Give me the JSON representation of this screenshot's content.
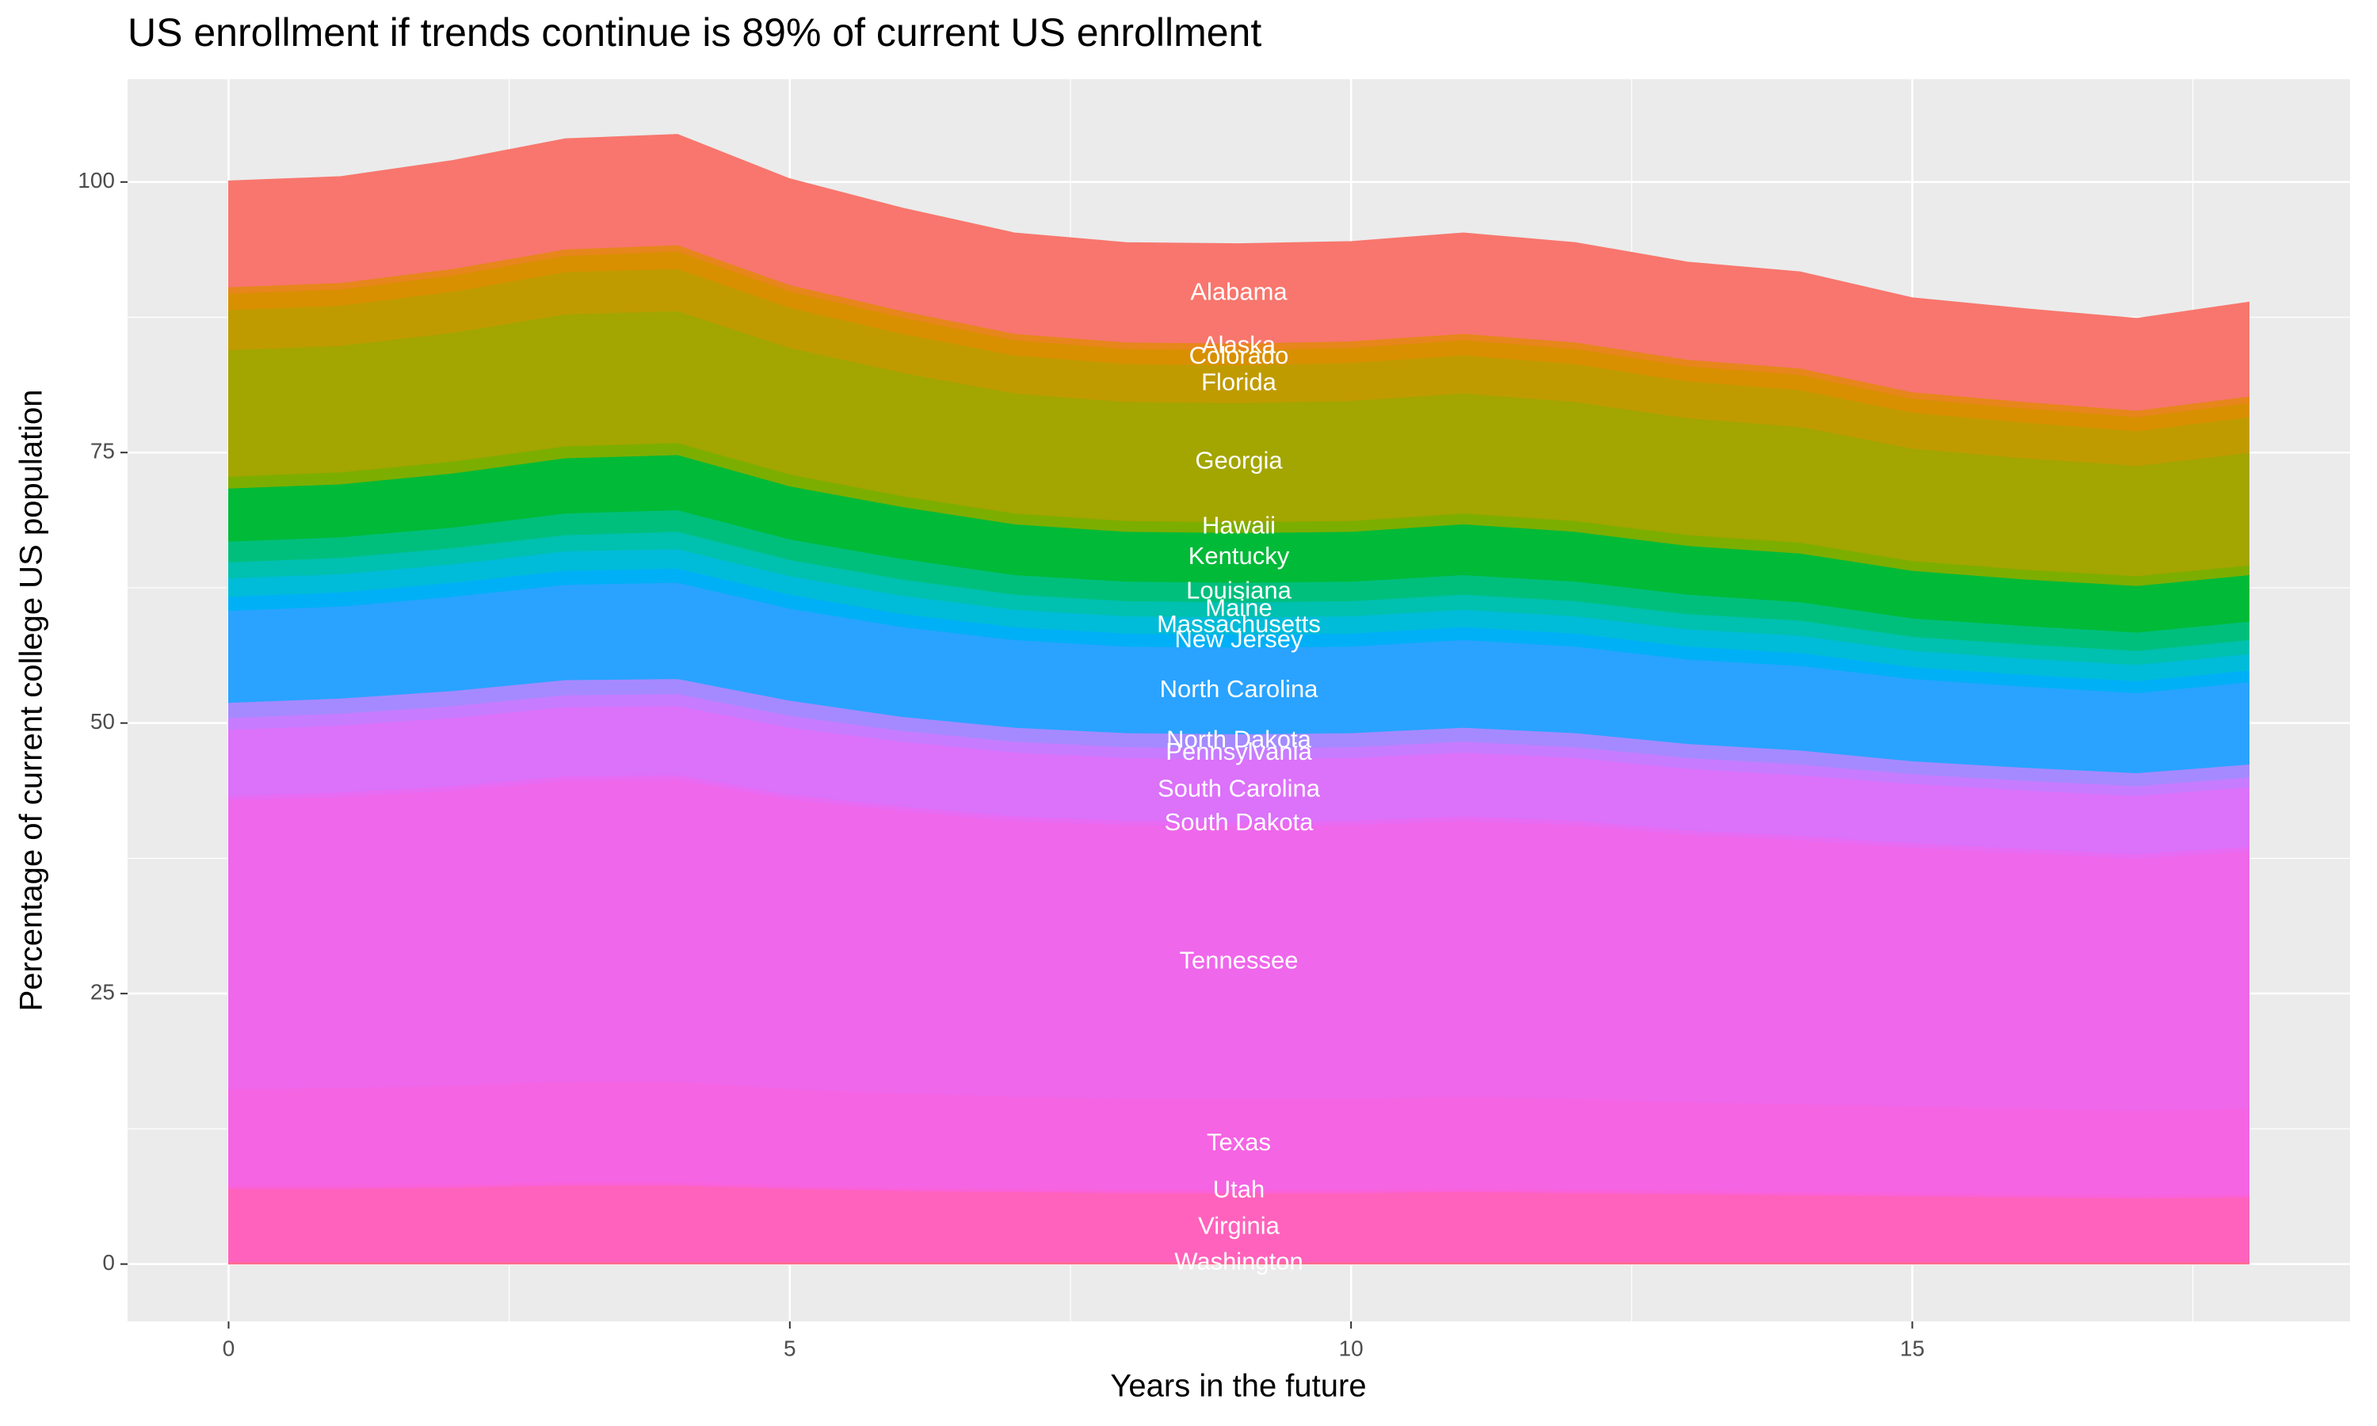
{
  "chart_data": {
    "type": "stacked-area",
    "title": "US enrollment if trends continue is 89% of current US enrollment",
    "x_label": "Years in the future",
    "y_label": "Percentage of current college US population",
    "x": [
      0,
      1,
      2,
      3,
      4,
      5,
      6,
      7,
      8,
      9,
      10,
      11,
      12,
      13,
      14,
      15,
      16,
      17,
      18
    ],
    "xlim": [
      -0.9,
      18.9
    ],
    "xticks": [
      0,
      5,
      10,
      15
    ],
    "ylim": [
      -5.3,
      109.5
    ],
    "yticks": [
      0,
      25,
      50,
      75,
      100
    ],
    "grid": true,
    "label_x": 9,
    "series": [
      {
        "name": "Washington",
        "color": "#FF6C91",
        "values": [
          0.2,
          0.2,
          0.2,
          0.2,
          0.2,
          0.2,
          0.2,
          0.2,
          0.2,
          0.2,
          0.2,
          0.2,
          0.2,
          0.2,
          0.2,
          0.2,
          0.2,
          0.2,
          0.2
        ]
      },
      {
        "name": "Virginia",
        "color": "#FF62BC",
        "values": [
          6.8,
          6.8,
          6.9,
          7.1,
          7.1,
          6.8,
          6.6,
          6.5,
          6.4,
          6.4,
          6.4,
          6.5,
          6.4,
          6.3,
          6.2,
          6.1,
          6.0,
          5.9,
          6.0
        ]
      },
      {
        "name": "Utah",
        "color": "#FA62DB",
        "values": [
          0.3,
          0.3,
          0.3,
          0.3,
          0.3,
          0.3,
          0.3,
          0.3,
          0.3,
          0.3,
          0.3,
          0.3,
          0.3,
          0.3,
          0.3,
          0.3,
          0.3,
          0.3,
          0.3
        ]
      },
      {
        "name": "Texas",
        "color": "#F564E3",
        "values": [
          8.9,
          9.0,
          9.1,
          9.3,
          9.3,
          8.9,
          8.7,
          8.5,
          8.4,
          8.4,
          8.4,
          8.5,
          8.4,
          8.2,
          8.1,
          8.0,
          7.9,
          7.8,
          7.9
        ]
      },
      {
        "name": "Tennessee",
        "color": "#EF67EB",
        "values": [
          26.7,
          26.9,
          27.3,
          27.8,
          27.9,
          26.8,
          26.1,
          25.5,
          25.3,
          25.2,
          25.3,
          25.5,
          25.3,
          24.7,
          24.4,
          23.9,
          23.6,
          23.3,
          23.8
        ]
      },
      {
        "name": "South Dakota",
        "color": "#E76BF3",
        "values": [
          0.4,
          0.4,
          0.4,
          0.4,
          0.4,
          0.4,
          0.4,
          0.4,
          0.4,
          0.4,
          0.4,
          0.4,
          0.4,
          0.4,
          0.4,
          0.4,
          0.4,
          0.4,
          0.4
        ]
      },
      {
        "name": "South Carolina",
        "color": "#DC71FA",
        "values": [
          6.1,
          6.2,
          6.3,
          6.4,
          6.4,
          6.2,
          6.0,
          5.9,
          5.8,
          5.8,
          5.8,
          5.9,
          5.8,
          5.7,
          5.6,
          5.5,
          5.4,
          5.4,
          5.5
        ]
      },
      {
        "name": "Pennsylvania",
        "color": "#C77CFF",
        "values": [
          1.1,
          1.1,
          1.1,
          1.1,
          1.1,
          1.1,
          1.0,
          1.0,
          1.0,
          1.0,
          1.0,
          1.0,
          1.0,
          1.0,
          1.0,
          0.9,
          0.9,
          0.9,
          0.9
        ]
      },
      {
        "name": "North Dakota",
        "color": "#A58AFF",
        "values": [
          1.4,
          1.4,
          1.4,
          1.4,
          1.4,
          1.4,
          1.3,
          1.3,
          1.3,
          1.3,
          1.3,
          1.3,
          1.3,
          1.3,
          1.3,
          1.2,
          1.2,
          1.2,
          1.2
        ]
      },
      {
        "name": "North Carolina",
        "color": "#29A3FF",
        "values": [
          8.5,
          8.5,
          8.7,
          8.8,
          8.9,
          8.5,
          8.3,
          8.1,
          8.0,
          8.0,
          8.0,
          8.1,
          8.0,
          7.8,
          7.8,
          7.6,
          7.5,
          7.4,
          7.6
        ]
      },
      {
        "name": "New Jersey",
        "color": "#00B0F6",
        "values": [
          1.3,
          1.3,
          1.3,
          1.3,
          1.3,
          1.3,
          1.2,
          1.2,
          1.2,
          1.2,
          1.2,
          1.2,
          1.2,
          1.2,
          1.2,
          1.1,
          1.1,
          1.1,
          1.1
        ]
      },
      {
        "name": "Massachusetts",
        "color": "#00BCD8",
        "values": [
          1.7,
          1.7,
          1.7,
          1.8,
          1.8,
          1.7,
          1.7,
          1.6,
          1.6,
          1.6,
          1.6,
          1.6,
          1.6,
          1.6,
          1.6,
          1.5,
          1.5,
          1.5,
          1.5
        ]
      },
      {
        "name": "Maine",
        "color": "#00C0AF",
        "values": [
          1.5,
          1.5,
          1.5,
          1.5,
          1.6,
          1.5,
          1.5,
          1.4,
          1.4,
          1.4,
          1.4,
          1.4,
          1.4,
          1.4,
          1.4,
          1.3,
          1.3,
          1.3,
          1.3
        ]
      },
      {
        "name": "Louisiana",
        "color": "#00BF7D",
        "values": [
          1.9,
          1.9,
          1.9,
          2.0,
          2.0,
          1.9,
          1.9,
          1.8,
          1.8,
          1.8,
          1.8,
          1.8,
          1.8,
          1.8,
          1.7,
          1.7,
          1.7,
          1.7,
          1.7
        ]
      },
      {
        "name": "Kentucky",
        "color": "#00BA38",
        "values": [
          4.9,
          4.9,
          5.0,
          5.1,
          5.1,
          4.9,
          4.8,
          4.7,
          4.6,
          4.6,
          4.6,
          4.7,
          4.6,
          4.5,
          4.5,
          4.4,
          4.3,
          4.3,
          4.3
        ]
      },
      {
        "name": "Hawaii",
        "color": "#7CAE00",
        "values": [
          1.1,
          1.1,
          1.1,
          1.1,
          1.1,
          1.1,
          1.0,
          1.0,
          1.0,
          1.0,
          1.0,
          1.0,
          1.0,
          1.0,
          1.0,
          0.9,
          0.9,
          0.9,
          0.9
        ]
      },
      {
        "name": "Georgia",
        "color": "#A3A500",
        "values": [
          11.7,
          11.7,
          11.9,
          12.2,
          12.2,
          11.7,
          11.4,
          11.1,
          11.0,
          11.0,
          11.1,
          11.1,
          11.0,
          10.8,
          10.7,
          10.4,
          10.3,
          10.2,
          10.4
        ]
      },
      {
        "name": "Florida",
        "color": "#C09B00",
        "values": [
          3.7,
          3.7,
          3.8,
          3.9,
          3.9,
          3.7,
          3.6,
          3.5,
          3.5,
          3.5,
          3.5,
          3.5,
          3.5,
          3.4,
          3.4,
          3.3,
          3.3,
          3.2,
          3.3
        ]
      },
      {
        "name": "Colorado",
        "color": "#D89000",
        "values": [
          1.5,
          1.5,
          1.5,
          1.5,
          1.6,
          1.5,
          1.5,
          1.4,
          1.4,
          1.4,
          1.4,
          1.4,
          1.4,
          1.4,
          1.4,
          1.3,
          1.3,
          1.3,
          1.3
        ]
      },
      {
        "name": "Alaska",
        "color": "#E7861B",
        "values": [
          0.6,
          0.6,
          0.6,
          0.6,
          0.6,
          0.6,
          0.6,
          0.6,
          0.6,
          0.6,
          0.6,
          0.6,
          0.6,
          0.6,
          0.6,
          0.6,
          0.6,
          0.6,
          0.6
        ]
      },
      {
        "name": "Alabama",
        "color": "#F8766D",
        "values": [
          9.8,
          9.8,
          10.0,
          10.2,
          10.2,
          9.8,
          9.5,
          9.3,
          9.2,
          9.2,
          9.2,
          9.3,
          9.2,
          9.0,
          8.9,
          8.7,
          8.6,
          8.5,
          8.7
        ]
      }
    ]
  }
}
